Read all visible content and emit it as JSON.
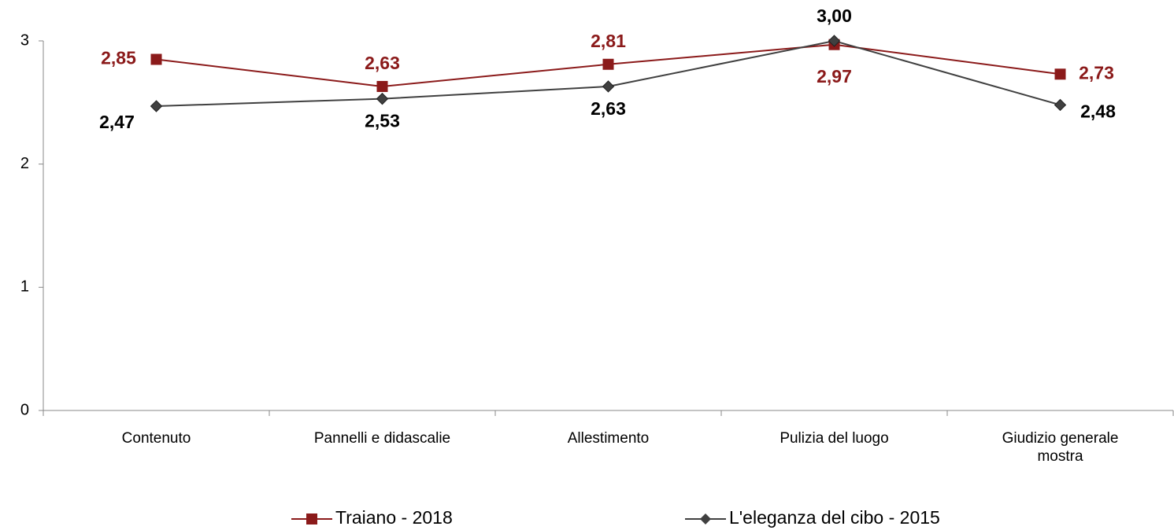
{
  "chart_data": {
    "type": "line",
    "categories": [
      "Contenuto",
      "Pannelli e didascalie",
      "Allestimento",
      "Pulizia del luogo",
      "Giudizio generale mostra"
    ],
    "series": [
      {
        "name": "Traiano - 2018",
        "color": "#8b1a1a",
        "marker": "square",
        "values": [
          2.85,
          2.63,
          2.81,
          2.97,
          2.73
        ],
        "value_labels": [
          "2,85",
          "2,63",
          "2,81",
          "2,97",
          "2,73"
        ]
      },
      {
        "name": "L'eleganza del cibo - 2015",
        "color": "#404040",
        "marker": "diamond",
        "values": [
          2.47,
          2.53,
          2.63,
          3.0,
          2.48
        ],
        "value_labels": [
          "2,47",
          "2,53",
          "2,63",
          "3,00",
          "2,48"
        ]
      }
    ],
    "ylim": [
      0,
      3
    ],
    "yticks": [
      0,
      1,
      2,
      3
    ],
    "grid": false,
    "legend": "bottom"
  }
}
